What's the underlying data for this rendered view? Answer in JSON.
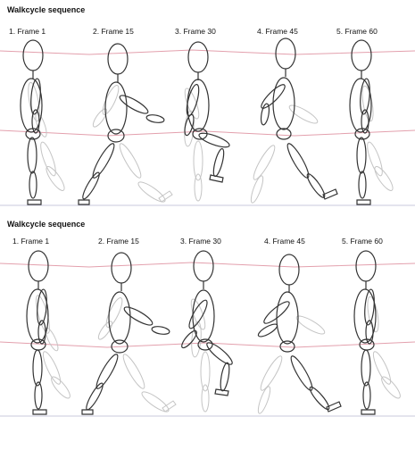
{
  "panels": [
    {
      "title": "Walkcycle sequence",
      "frames": [
        "1. Frame 1",
        "2. Frame 15",
        "3. Frame 30",
        "4. Frame 45",
        "5. Frame 60"
      ]
    },
    {
      "title": "Walkcycle sequence",
      "frames": [
        "1. Frame 1",
        "2. Frame 15",
        "3. Frame 30",
        "4. Frame 45",
        "5. Frame 60"
      ]
    }
  ],
  "colors": {
    "guide_line": "#e3a0ad",
    "ground_line": "#c9c9de",
    "figure_stroke": "#333333",
    "ghost_stroke": "#bfbfbf"
  }
}
